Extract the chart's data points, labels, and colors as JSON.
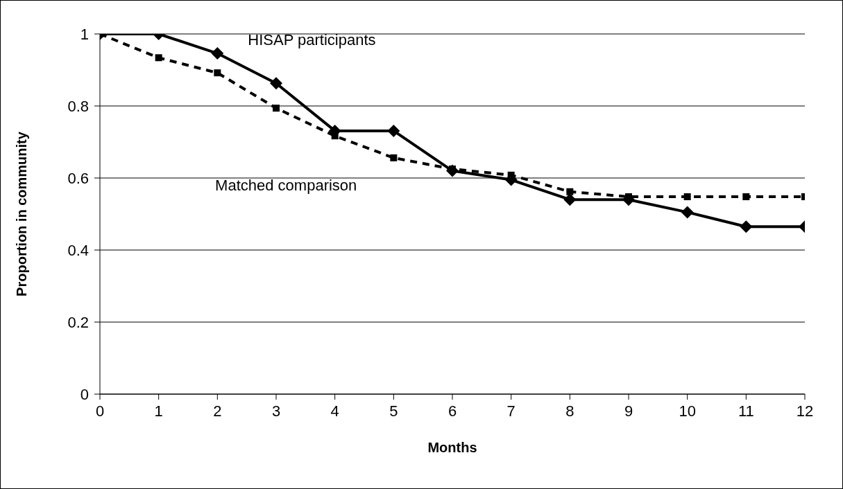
{
  "chart_data": {
    "type": "line",
    "xlabel": "Months",
    "ylabel": "Proportion in community",
    "x": [
      0,
      1,
      2,
      3,
      4,
      5,
      6,
      7,
      8,
      9,
      10,
      11,
      12
    ],
    "xlim": [
      0,
      12
    ],
    "xticks": [
      0,
      1,
      2,
      3,
      4,
      5,
      6,
      7,
      8,
      9,
      10,
      11,
      12
    ],
    "ylim": [
      0,
      1
    ],
    "yticks": [
      0,
      0.2,
      0.4,
      0.6,
      0.8,
      1
    ],
    "grid": "y",
    "legend": false,
    "series": [
      {
        "name": "HISAP participants",
        "color": "#000000",
        "marker": "diamond",
        "line_style": "solid",
        "values": [
          1,
          1,
          0.946,
          0.863,
          0.731,
          0.731,
          0.62,
          0.595,
          0.54,
          0.54,
          0.505,
          0.465,
          0.465
        ]
      },
      {
        "name": "Matched comparison",
        "color": "#000000",
        "marker": "square",
        "line_style": "dashed",
        "values": [
          1,
          0.934,
          0.892,
          0.794,
          0.717,
          0.656,
          0.625,
          0.608,
          0.562,
          0.548,
          0.548,
          0.548,
          0.548
        ]
      }
    ]
  }
}
